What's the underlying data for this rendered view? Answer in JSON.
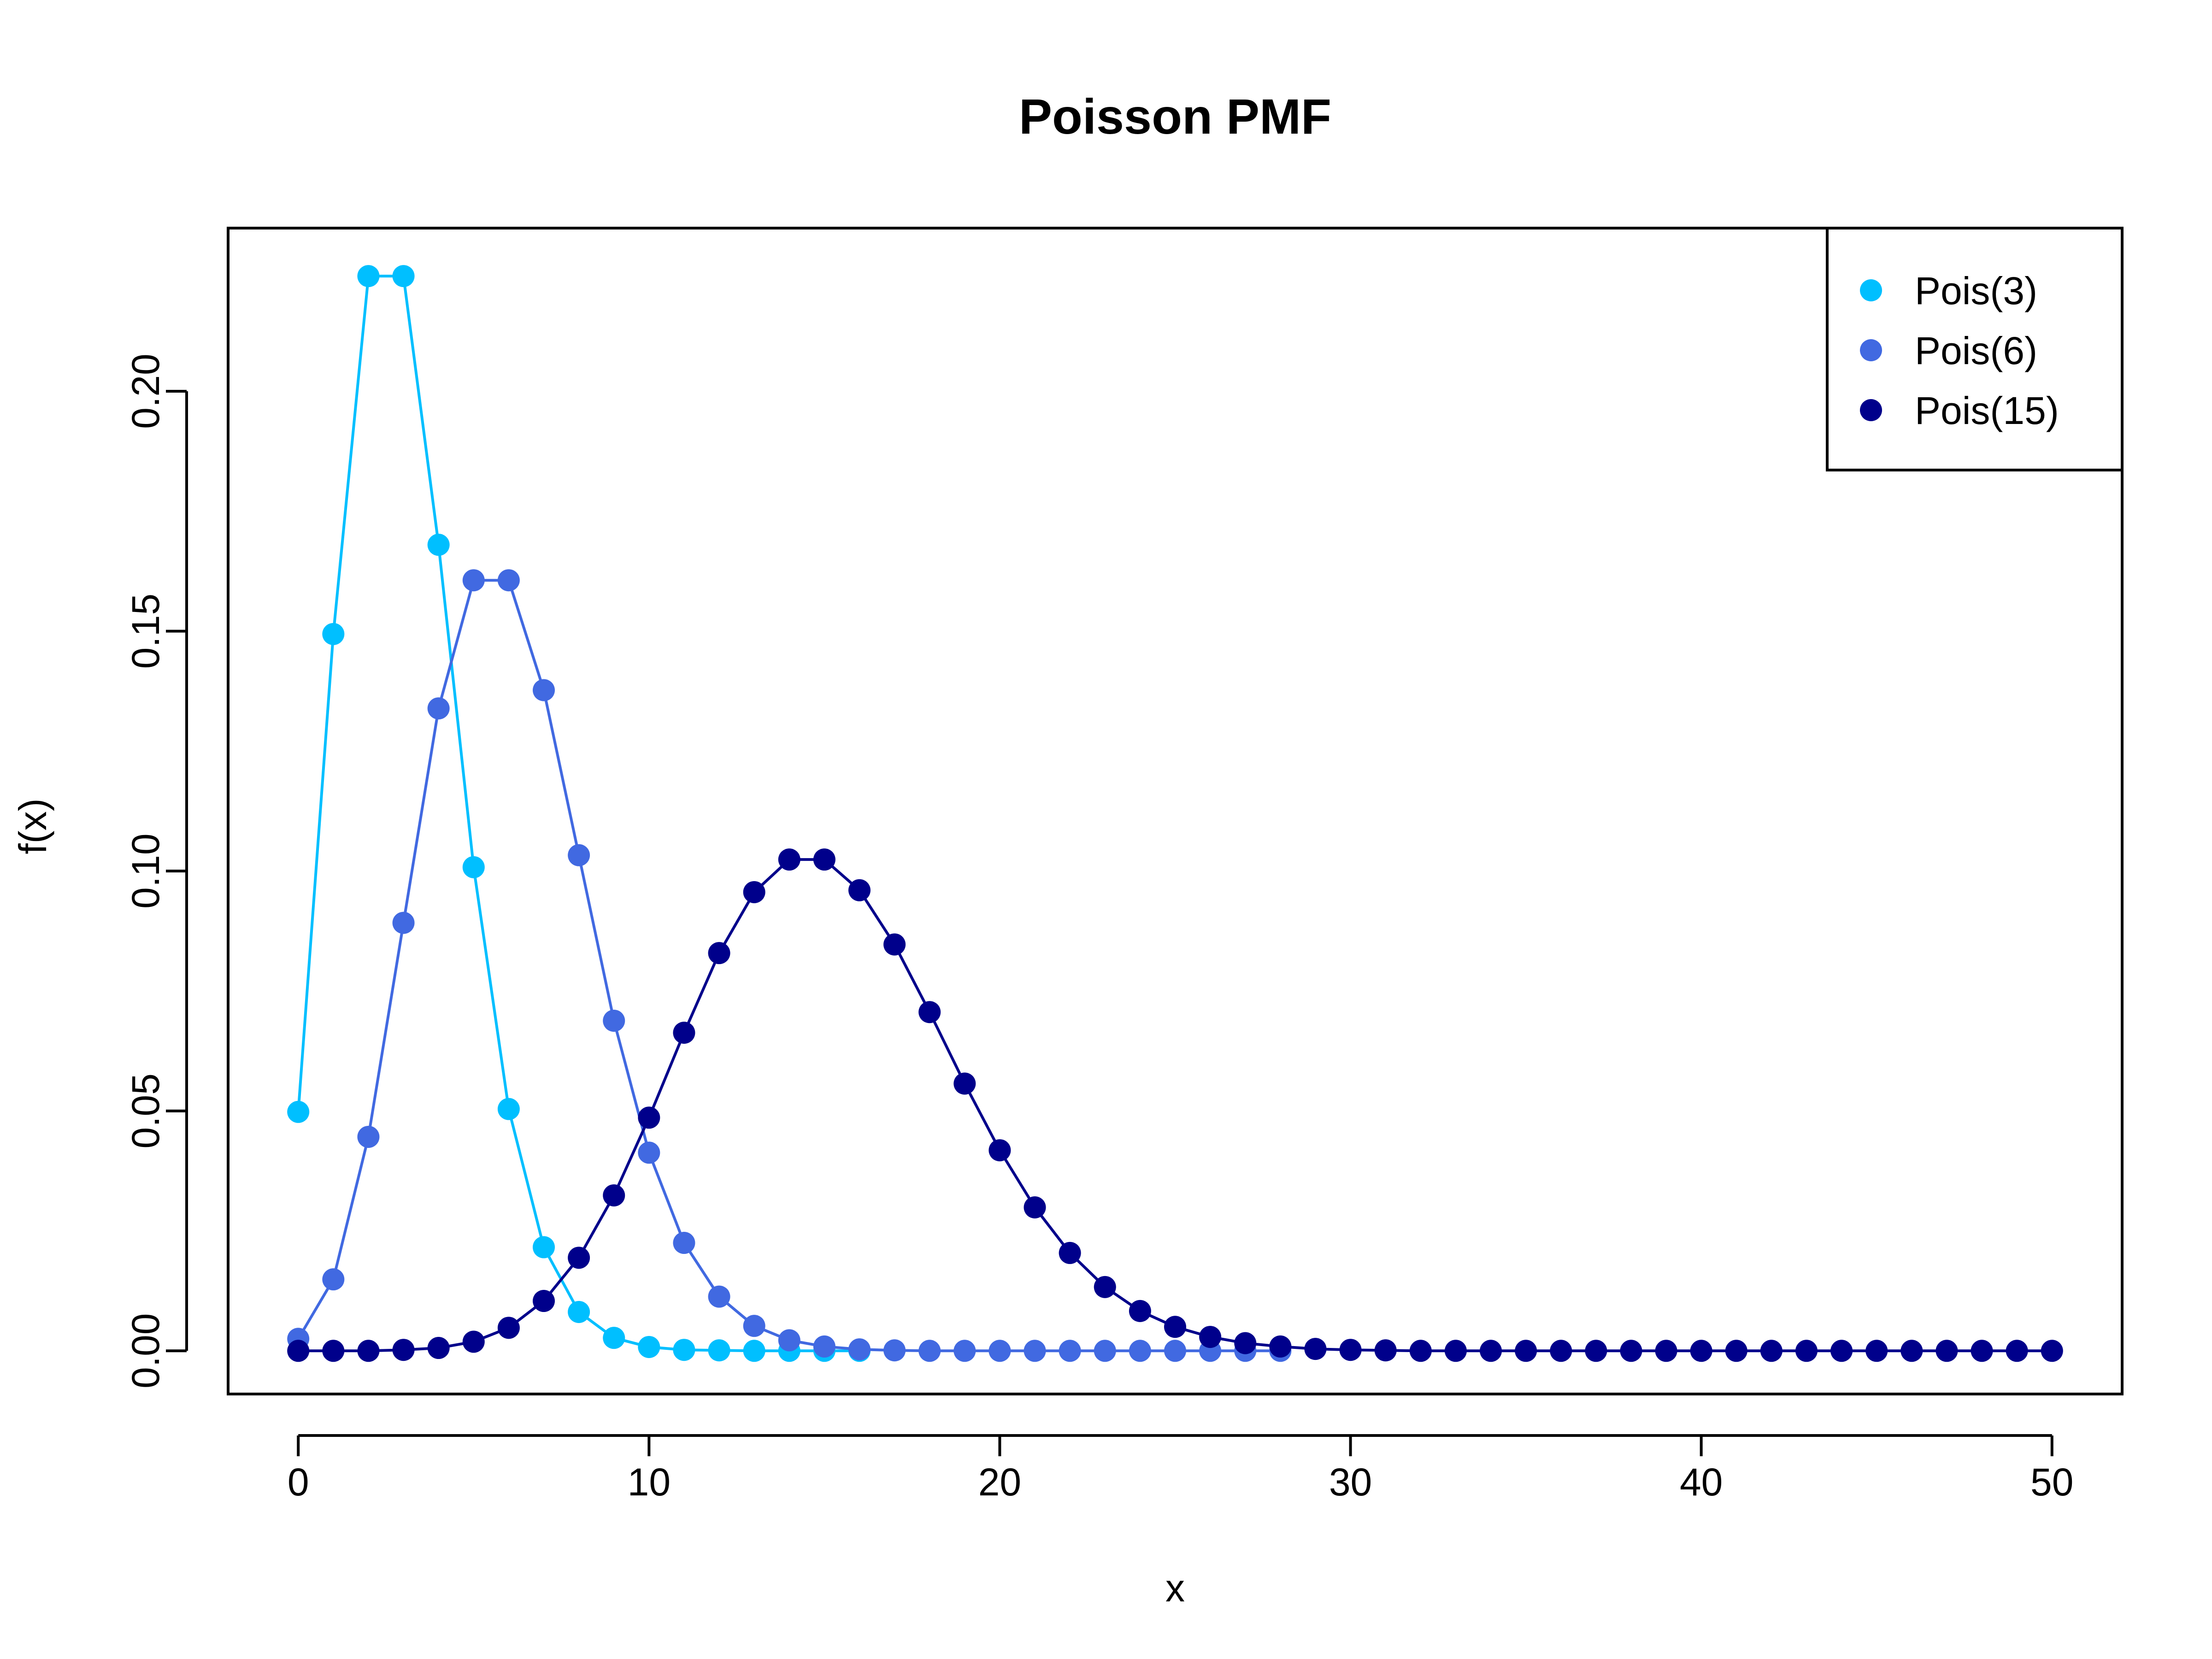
{
  "chart_data": {
    "type": "line",
    "title": "Poisson PMF",
    "xlabel": "x",
    "ylabel": "f(x)",
    "xlim": [
      -2,
      52
    ],
    "ylim": [
      -0.009,
      0.234
    ],
    "x_ticks": [
      "0",
      "10",
      "20",
      "30",
      "40",
      "50"
    ],
    "y_ticks": [
      "0.00",
      "0.05",
      "0.10",
      "0.15",
      "0.20"
    ],
    "grid": false,
    "markers": "filled-circle",
    "legend": {
      "position": "top-right",
      "entries": [
        "Pois(3)",
        "Pois(6)",
        "Pois(15)"
      ]
    },
    "x": [
      0,
      1,
      2,
      3,
      4,
      5,
      6,
      7,
      8,
      9,
      10,
      11,
      12,
      13,
      14,
      15,
      16,
      17,
      18,
      19,
      20,
      21,
      22,
      23,
      24,
      25,
      26,
      27,
      28,
      29,
      30,
      31,
      32,
      33,
      34,
      35,
      36,
      37,
      38,
      39,
      40,
      41,
      42,
      43,
      44,
      45,
      46,
      47,
      48,
      49,
      50
    ],
    "series": [
      {
        "name": "Pois(3)",
        "color": "#00BFFF",
        "x": [
          0,
          1,
          2,
          3,
          4,
          5,
          6,
          7,
          8,
          9,
          10,
          11,
          12,
          13,
          14,
          15,
          16
        ],
        "values": [
          0.0498,
          0.1494,
          0.224,
          0.224,
          0.168,
          0.1008,
          0.0504,
          0.0216,
          0.0081,
          0.0027,
          0.0008,
          0.0002,
          0.0001,
          0.0,
          0.0,
          0.0,
          0.0
        ]
      },
      {
        "name": "Pois(6)",
        "color": "#4169E1",
        "x": [
          0,
          1,
          2,
          3,
          4,
          5,
          6,
          7,
          8,
          9,
          10,
          11,
          12,
          13,
          14,
          15,
          16,
          17,
          18,
          19,
          20,
          21,
          22,
          23,
          24,
          25,
          26,
          27,
          28
        ],
        "values": [
          0.0025,
          0.0149,
          0.0446,
          0.0892,
          0.1339,
          0.1606,
          0.1606,
          0.1377,
          0.1033,
          0.0688,
          0.0413,
          0.0225,
          0.0113,
          0.0052,
          0.0022,
          0.0009,
          0.0003,
          0.0001,
          0.0,
          0.0,
          0.0,
          0.0,
          0.0,
          0.0,
          0.0,
          0.0,
          0.0,
          0.0,
          0.0
        ]
      },
      {
        "name": "Pois(15)",
        "color": "#00008B",
        "x": [
          0,
          1,
          2,
          3,
          4,
          5,
          6,
          7,
          8,
          9,
          10,
          11,
          12,
          13,
          14,
          15,
          16,
          17,
          18,
          19,
          20,
          21,
          22,
          23,
          24,
          25,
          26,
          27,
          28,
          29,
          30,
          31,
          32,
          33,
          34,
          35,
          36,
          37,
          38,
          39,
          40,
          41,
          42,
          43,
          44,
          45,
          46,
          47,
          48,
          49,
          50
        ],
        "values": [
          0.0,
          0.0,
          0.0,
          0.0002,
          0.0006,
          0.0019,
          0.0048,
          0.0104,
          0.0194,
          0.0324,
          0.0486,
          0.0663,
          0.0829,
          0.0956,
          0.1024,
          0.1024,
          0.096,
          0.0847,
          0.0706,
          0.0557,
          0.0418,
          0.0299,
          0.0204,
          0.0133,
          0.0083,
          0.005,
          0.0029,
          0.0016,
          0.0009,
          0.0004,
          0.0002,
          0.0001,
          0.0,
          0.0,
          0.0,
          0.0,
          0.0,
          0.0,
          0.0,
          0.0,
          0.0,
          0.0,
          0.0,
          0.0,
          0.0,
          0.0,
          0.0,
          0.0,
          0.0,
          0.0,
          0.0
        ]
      }
    ]
  }
}
